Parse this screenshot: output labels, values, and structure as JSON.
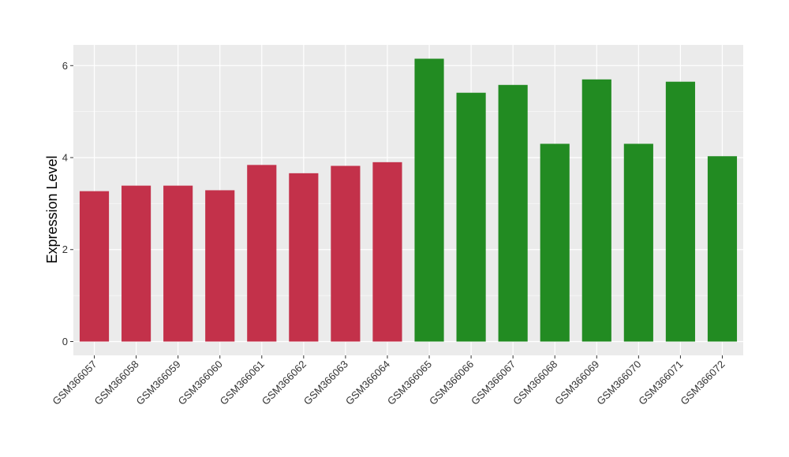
{
  "chart_data": {
    "type": "bar",
    "title": "",
    "xlabel": "",
    "ylabel": "Expression Level",
    "ylim": [
      -0.3,
      6.45
    ],
    "yticks": [
      0,
      2,
      4,
      6
    ],
    "grid": true,
    "legend": "none",
    "categories": [
      "GSM366057",
      "GSM366058",
      "GSM366059",
      "GSM366060",
      "GSM366061",
      "GSM366062",
      "GSM366063",
      "GSM366064",
      "GSM366065",
      "GSM366066",
      "GSM366067",
      "GSM366068",
      "GSM366069",
      "GSM366070",
      "GSM366071",
      "GSM366072"
    ],
    "values": [
      3.27,
      3.39,
      3.39,
      3.29,
      3.84,
      3.66,
      3.82,
      3.9,
      6.15,
      5.41,
      5.58,
      4.3,
      5.7,
      4.3,
      5.65,
      4.03
    ],
    "bar_colors": [
      "#c3314a",
      "#c3314a",
      "#c3314a",
      "#c3314a",
      "#c3314a",
      "#c3314a",
      "#c3314a",
      "#c3314a",
      "#228b22",
      "#228b22",
      "#228b22",
      "#228b22",
      "#228b22",
      "#228b22",
      "#228b22",
      "#228b22"
    ],
    "panel_background": "#ebebeb",
    "grid_color": "#ffffff"
  }
}
